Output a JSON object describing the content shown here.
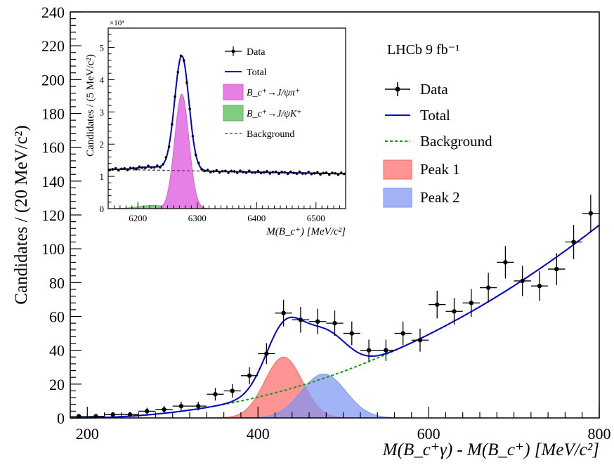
{
  "chart_data": [
    {
      "type": "scatter",
      "name": "main",
      "ylabel": "Candidates / (20 MeV/c²)",
      "xlabel": "M(B_c⁺γ) - M(B_c⁺) [MeV/c²]",
      "xlim": [
        180,
        800
      ],
      "ylim": [
        0,
        240
      ],
      "x_ticks": [
        200,
        400,
        600,
        800
      ],
      "y_ticks": [
        0,
        20,
        40,
        60,
        80,
        100,
        120,
        140,
        160,
        180,
        200,
        220,
        240
      ],
      "annotation": "LHCb  9 fb⁻¹",
      "legend": [
        "Data",
        "Total",
        "Background",
        "Peak 1",
        "Peak 2"
      ],
      "legend_position": "right",
      "colors": {
        "data": "#000000",
        "total": "#0000cc",
        "background": "#119911",
        "peak1": "#ff6666",
        "peak2": "#7c93f4"
      },
      "data": {
        "x": [
          190,
          210,
          230,
          250,
          270,
          290,
          310,
          330,
          350,
          370,
          390,
          410,
          430,
          450,
          470,
          490,
          510,
          530,
          550,
          570,
          590,
          610,
          630,
          650,
          670,
          690,
          710,
          730,
          750,
          770,
          790
        ],
        "y": [
          1,
          1,
          2,
          2,
          4,
          5,
          7,
          7,
          14,
          16,
          25,
          38,
          62,
          58,
          57,
          56,
          50,
          40,
          40,
          50,
          46,
          67,
          63,
          68,
          77,
          92,
          81,
          78,
          88,
          104,
          121
        ],
        "yerr": [
          1,
          1,
          1.5,
          1.5,
          2,
          2.2,
          2.6,
          2.6,
          3.7,
          4,
          5,
          6.2,
          7.9,
          7.6,
          7.5,
          7.5,
          7,
          6.3,
          6.3,
          7,
          6.8,
          8.2,
          7.9,
          8.2,
          8.8,
          9.6,
          9,
          8.8,
          9.4,
          10.2,
          11
        ]
      },
      "background": {
        "form": "a*(x-180)^2.15",
        "norm_at_800": 114
      },
      "peak1": {
        "mean": 430,
        "sigma": 22,
        "height": 36
      },
      "peak2": {
        "mean": 477,
        "sigma": 26,
        "height": 26
      }
    },
    {
      "type": "scatter",
      "name": "inset",
      "ylabel": "Candidates / (5 MeV/c²)",
      "xlabel": "M(B_c⁺) [MeV/c²]",
      "multiplier": "×10³",
      "xlim": [
        6150,
        6550
      ],
      "ylim": [
        0,
        5.6
      ],
      "x_ticks": [
        6200,
        6300,
        6400,
        6500
      ],
      "y_ticks": [
        0,
        1,
        2,
        3,
        4,
        5
      ],
      "legend": [
        "Data",
        "Total",
        "B_c⁺→J/ψπ⁺",
        "B_c⁺→J/ψK⁺",
        "Background"
      ],
      "legend_position": "top-right",
      "colors": {
        "data": "#000000",
        "total": "#0000cc",
        "signal": "#e680e6",
        "kaon": "#80cc80",
        "background": "#555555"
      },
      "signal": {
        "mean": 6274,
        "sigma": 12,
        "height": 3.55
      },
      "kaon": {
        "mean": 6225,
        "sigma": 25,
        "height": 0.1
      },
      "background": {
        "at_6150": 1.22,
        "at_6550": 1.08
      }
    }
  ]
}
